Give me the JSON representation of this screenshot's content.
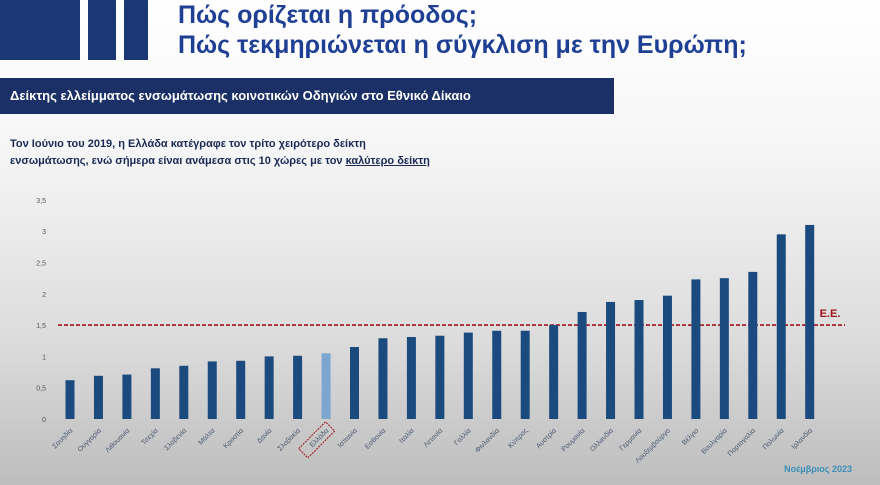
{
  "header": {
    "title_line1": "Πώς ορίζεται η πρόοδος;",
    "title_line2": "Πώς τεκμηριώνεται η σύγκλιση με την Ευρώπη;"
  },
  "banner": {
    "text": "Δείκτης ελλείμματος ενσωμάτωσης  κοινοτικών Οδηγιών στο Εθνικό Δίκαιο"
  },
  "intro": {
    "line1": "Τον Ιούνιο του 2019, η Ελλάδα κατέγραφε τον τρίτο χειρότερο δείκτη",
    "line2_prefix": "ενσωμάτωσης, ενώ σήμερα είναι ανάμεσα στις 10 χώρες με τον ",
    "line2_emph": "καλύτερο δείκτη"
  },
  "footer": {
    "date": "Νοέμβριος 2023"
  },
  "colors": {
    "bar": "#1b4a7e",
    "highlight_bar": "#7aa6d0",
    "eu_line": "#a0141e",
    "title": "#1e3f94",
    "banner": "#1b3066"
  },
  "chart_data": {
    "type": "bar",
    "categories": [
      "Σουηδία",
      "Ουγγαρία",
      "Λιθουανία",
      "Τσεχία",
      "Σλοβενία",
      "Μάλτα",
      "Κροατία",
      "Δανία",
      "Σλοβακία",
      "Ελλάδα",
      "Ισπανία",
      "Εσθονία",
      "Ιταλία",
      "Λετονία",
      "Γαλλία",
      "Φινλανδία",
      "Κύπρος",
      "Αυστρία",
      "Ρουμανία",
      "Ολλανδία",
      "Γερμανία",
      "Λουξεμβούργο",
      "Βέλγιο",
      "Βουλγαρία",
      "Πορτογαλία",
      "Πολωνία",
      "Ιρλανδία"
    ],
    "values": [
      0.62,
      0.69,
      0.71,
      0.81,
      0.85,
      0.92,
      0.93,
      1.0,
      1.01,
      1.05,
      1.15,
      1.29,
      1.31,
      1.33,
      1.38,
      1.41,
      1.41,
      1.5,
      1.71,
      1.87,
      1.9,
      1.97,
      2.23,
      2.25,
      2.35,
      2.95,
      3.1
    ],
    "highlight": "Ελλάδα",
    "yticks": [
      "0",
      "0,5",
      "1",
      "1,5",
      "2",
      "2,5",
      "3",
      "3,5"
    ],
    "ylim": [
      0,
      3.5
    ],
    "reference_line": {
      "value": 1.5,
      "label": "E.E."
    },
    "grid": false
  }
}
